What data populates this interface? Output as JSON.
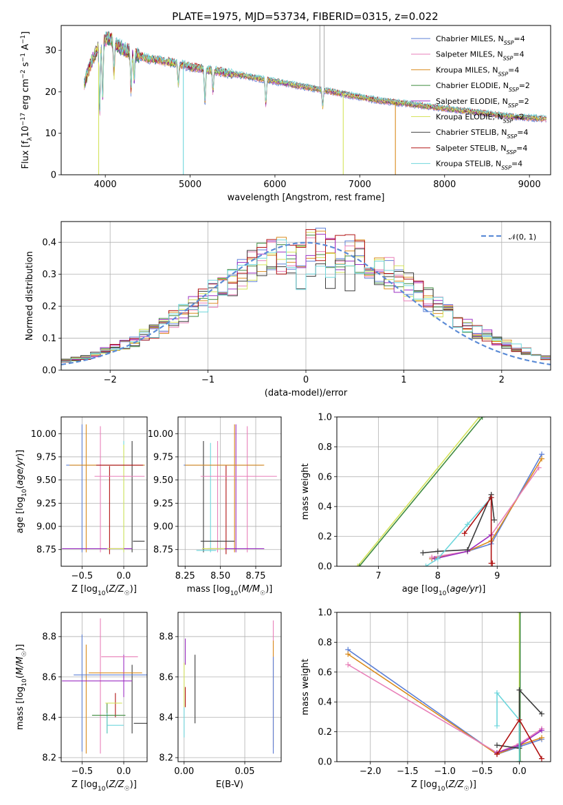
{
  "figure": {
    "title": "PLATE=1975, MJD=53734, FIBERID=0315, z=0.022"
  },
  "models": [
    {
      "name": "Chabrier MILES",
      "nssp": "4",
      "color": "#5b7fd6"
    },
    {
      "name": "Salpeter MILES",
      "nssp": "4",
      "color": "#e87fb8"
    },
    {
      "name": "Kroupa MILES",
      "nssp": "4",
      "color": "#d98a1a"
    },
    {
      "name": "Chabrier ELODIE",
      "nssp": "2",
      "color": "#3e8b3e"
    },
    {
      "name": "Salpeter ELODIE",
      "nssp": "2",
      "color": "#9b2ec2"
    },
    {
      "name": "Kroupa ELODIE",
      "nssp": "2",
      "color": "#d4e35a"
    },
    {
      "name": "Chabrier STELIB",
      "nssp": "4",
      "color": "#3a3a3a"
    },
    {
      "name": "Salpeter STELIB",
      "nssp": "4",
      "color": "#b01010"
    },
    {
      "name": "Kroupa STELIB",
      "nssp": "4",
      "color": "#6dd6dc"
    }
  ],
  "chart_data": [
    {
      "id": "spectrum",
      "type": "line",
      "xlabel": "wavelength [Angstrom, rest frame]",
      "ylabel": "Flux [f_λ 10^-17 erg cm^-2 s^-1 A^-1]",
      "xlim": [
        3480,
        9250
      ],
      "ylim": [
        0,
        36
      ],
      "xticks": [
        4000,
        5000,
        6000,
        7000,
        8000,
        9000
      ],
      "yticks": [
        0,
        10,
        20,
        30
      ],
      "grid": false,
      "legend": "top-right",
      "continuum": {
        "x": [
          3750,
          3850,
          3950,
          4050,
          4150,
          4300,
          4500,
          4800,
          5000,
          5300,
          5600,
          6000,
          6400,
          6800,
          7200,
          7600,
          8000,
          8400,
          8800,
          9200
        ],
        "y": [
          22,
          28,
          32,
          33,
          31,
          29.5,
          28,
          27,
          26,
          25,
          24,
          22.5,
          21,
          19.5,
          18,
          17,
          16,
          15,
          14,
          13.5
        ]
      },
      "absorption_features": [
        {
          "x": 3934,
          "depth": 16
        },
        {
          "x": 3969,
          "depth": 14
        },
        {
          "x": 4102,
          "depth": 8
        },
        {
          "x": 4304,
          "depth": 9
        },
        {
          "x": 4340,
          "depth": 6
        },
        {
          "x": 4861,
          "depth": 5
        },
        {
          "x": 5175,
          "depth": 8
        },
        {
          "x": 5270,
          "depth": 5
        },
        {
          "x": 5893,
          "depth": 6
        },
        {
          "x": 6563,
          "depth": 4
        }
      ],
      "spikes": [
        {
          "x": 4920,
          "to": 0,
          "color": "#6dd6dc"
        },
        {
          "x": 3922,
          "to": 0,
          "color": "#d4e35a"
        },
        {
          "x": 6805,
          "to": 0,
          "color": "#d4e35a"
        },
        {
          "x": 7420,
          "to": 0,
          "color": "#d98a1a"
        },
        {
          "x": 6530,
          "to": 36,
          "color": "#b0b0b0"
        },
        {
          "x": 6580,
          "to": 36,
          "color": "#b0b0b0"
        }
      ]
    },
    {
      "id": "residuals",
      "type": "step",
      "xlabel": "(data-model)/error",
      "ylabel": "Normed distribution",
      "xlim": [
        -2.5,
        2.5
      ],
      "ylim": [
        0,
        0.465
      ],
      "xticks": [
        -2,
        -1,
        0,
        1,
        2
      ],
      "yticks": [
        0.0,
        0.1,
        0.2,
        0.3,
        0.4
      ],
      "grid": true,
      "legend": "top-right",
      "reference": {
        "name": "𝒩(0, 1)",
        "color": "#5b8bd6"
      },
      "bins": {
        "start": -2.5,
        "width": 0.1,
        "count": 50
      },
      "base_histogram": [
        0.03,
        0.035,
        0.04,
        0.05,
        0.06,
        0.07,
        0.08,
        0.09,
        0.11,
        0.12,
        0.14,
        0.16,
        0.18,
        0.2,
        0.22,
        0.24,
        0.26,
        0.28,
        0.3,
        0.32,
        0.34,
        0.35,
        0.36,
        0.37,
        0.375,
        0.38,
        0.38,
        0.375,
        0.37,
        0.36,
        0.35,
        0.34,
        0.32,
        0.3,
        0.28,
        0.26,
        0.24,
        0.22,
        0.2,
        0.18,
        0.16,
        0.14,
        0.12,
        0.11,
        0.09,
        0.08,
        0.07,
        0.06,
        0.05,
        0.04
      ]
    },
    {
      "id": "age_vs_Z",
      "type": "errorbar",
      "xlabel": "Z [log10(Z/Z☉)]",
      "ylabel": "age [log10(age/yr)]",
      "xlim": [
        -0.75,
        0.28
      ],
      "ylim": [
        8.57,
        10.18
      ],
      "xticks": [
        -0.5,
        0.0
      ],
      "yticks": [
        8.75,
        9.0,
        9.25,
        9.5,
        9.75,
        10.0
      ],
      "grid": true,
      "points": [
        {
          "x": -0.22,
          "y": 9.66,
          "xerr": 0.47,
          "yerr": 0.0,
          "color": "#5b7fd6"
        },
        {
          "x": -0.05,
          "y": 9.54,
          "xerr": 0.3,
          "yerr": 0.0,
          "color": "#e87fb8"
        },
        {
          "x": -0.2,
          "y": 9.66,
          "xerr": 0.45,
          "yerr": 0.0,
          "color": "#d98a1a"
        },
        {
          "x": -0.32,
          "y": 8.76,
          "xerr": 0.42,
          "yerr": 0.0,
          "color": "#9b2ec2"
        },
        {
          "x": -0.1,
          "y": 8.76,
          "xerr": 0.1,
          "yerr": 0.0,
          "color": "#d4e35a"
        },
        {
          "x": -0.05,
          "y": 9.66,
          "xerr": 0.28,
          "yerr": 0.0,
          "color": "#b01010"
        },
        {
          "x": 0.18,
          "y": 8.84,
          "xerr": 0.07,
          "yerr": 0.0,
          "color": "#3a3a3a"
        }
      ],
      "vlines": [
        {
          "x": -0.5,
          "y0": 8.72,
          "y1": 10.1,
          "color": "#5b7fd6"
        },
        {
          "x": -0.45,
          "y0": 8.72,
          "y1": 10.1,
          "color": "#d98a1a"
        },
        {
          "x": -0.28,
          "y0": 8.72,
          "y1": 10.08,
          "color": "#e87fb8"
        },
        {
          "x": -0.17,
          "y0": 8.7,
          "y1": 9.65,
          "color": "#b01010"
        },
        {
          "x": 0.0,
          "y0": 8.72,
          "y1": 9.92,
          "color": "#6dd6dc"
        },
        {
          "x": 0.0,
          "y0": 8.72,
          "y1": 9.88,
          "color": "#d4e35a"
        },
        {
          "x": 0.1,
          "y0": 8.72,
          "y1": 9.92,
          "color": "#3a3a3a"
        }
      ]
    },
    {
      "id": "age_vs_mass",
      "type": "errorbar",
      "xlabel": "mass [log10(M/M☉)]",
      "ylabel": "",
      "xlim": [
        8.2,
        8.93
      ],
      "ylim": [
        8.57,
        10.18
      ],
      "xticks": [
        8.25,
        8.5,
        8.75
      ],
      "yticks": [
        8.75,
        9.0,
        9.25,
        9.5,
        9.75,
        10.0
      ],
      "grid": true,
      "points": [
        {
          "x": 8.52,
          "y": 9.66,
          "xerr": 0.28,
          "yerr": 0.0,
          "color": "#5b7fd6"
        },
        {
          "x": 8.63,
          "y": 9.54,
          "xerr": 0.27,
          "yerr": 0.0,
          "color": "#e87fb8"
        },
        {
          "x": 8.53,
          "y": 9.66,
          "xerr": 0.28,
          "yerr": 0.0,
          "color": "#d98a1a"
        },
        {
          "x": 8.61,
          "y": 8.76,
          "xerr": 0.2,
          "yerr": 0.0,
          "color": "#9b2ec2"
        },
        {
          "x": 8.45,
          "y": 8.76,
          "xerr": 0.08,
          "yerr": 0.0,
          "color": "#d4e35a"
        },
        {
          "x": 8.48,
          "y": 8.84,
          "xerr": 0.12,
          "yerr": 0.0,
          "color": "#3a3a3a"
        },
        {
          "x": 8.4,
          "y": 8.74,
          "xerr": 0.07,
          "yerr": 0.0,
          "color": "#6dd6dc"
        }
      ],
      "vlines": [
        {
          "x": 8.38,
          "y0": 8.72,
          "y1": 9.92,
          "color": "#3a3a3a"
        },
        {
          "x": 8.43,
          "y0": 8.72,
          "y1": 9.9,
          "color": "#6dd6dc"
        },
        {
          "x": 8.48,
          "y0": 8.72,
          "y1": 9.92,
          "color": "#e87fb8"
        },
        {
          "x": 8.54,
          "y0": 8.7,
          "y1": 9.66,
          "color": "#b01010"
        },
        {
          "x": 8.6,
          "y0": 8.72,
          "y1": 10.1,
          "color": "#d98a1a"
        },
        {
          "x": 8.61,
          "y0": 8.72,
          "y1": 10.1,
          "color": "#9b2ec2"
        },
        {
          "x": 8.69,
          "y0": 8.72,
          "y1": 10.08,
          "color": "#e87fb8"
        }
      ]
    },
    {
      "id": "weight_vs_age",
      "type": "line",
      "xlabel": "age [log10(age/yr)]",
      "ylabel": "mass weight",
      "xlim": [
        6.3,
        9.9
      ],
      "ylim": [
        0.0,
        1.0
      ],
      "xticks": [
        7,
        8,
        9
      ],
      "yticks": [
        0.0,
        0.2,
        0.4,
        0.6,
        0.8,
        1.0
      ],
      "grid": true,
      "series": [
        {
          "color": "#d4e35a",
          "x": [
            6.65,
            8.7
          ],
          "y": [
            0.0,
            1.0
          ]
        },
        {
          "color": "#3e8b3e",
          "x": [
            6.68,
            8.75
          ],
          "y": [
            0.0,
            1.0
          ]
        },
        {
          "color": "#5b7fd6",
          "x": [
            7.9,
            8.5,
            8.9,
            9.75
          ],
          "y": [
            0.05,
            0.1,
            0.15,
            0.75
          ]
        },
        {
          "color": "#d98a1a",
          "x": [
            7.9,
            8.5,
            8.9,
            9.75
          ],
          "y": [
            0.05,
            0.1,
            0.17,
            0.72
          ]
        },
        {
          "color": "#e87fb8",
          "x": [
            7.9,
            8.5,
            8.9,
            9.7
          ],
          "y": [
            0.06,
            0.1,
            0.21,
            0.66
          ]
        },
        {
          "color": "#9b2ec2",
          "x": [
            7.95,
            8.5,
            8.9
          ],
          "y": [
            0.05,
            0.1,
            0.21
          ]
        },
        {
          "color": "#3a3a3a",
          "x": [
            7.75,
            8.0,
            8.5,
            8.9,
            8.95
          ],
          "y": [
            0.09,
            0.1,
            0.11,
            0.48,
            0.31
          ]
        },
        {
          "color": "#6dd6dc",
          "x": [
            7.8,
            8.0,
            8.5,
            8.9
          ],
          "y": [
            0.0,
            0.05,
            0.28,
            0.46
          ]
        },
        {
          "color": "#b01010",
          "x": [
            8.45,
            8.9,
            8.9,
            8.92
          ],
          "y": [
            0.22,
            0.46,
            0.02,
            0.02
          ]
        }
      ]
    },
    {
      "id": "mass_vs_Z",
      "type": "errorbar",
      "xlabel": "Z [log10(Z/Z☉)]",
      "ylabel": "mass [log10(M/M☉)]",
      "xlim": [
        -0.75,
        0.28
      ],
      "ylim": [
        8.18,
        8.92
      ],
      "xticks": [
        -0.5,
        0.0
      ],
      "yticks": [
        8.2,
        8.4,
        8.6,
        8.8
      ],
      "grid": true,
      "points": [
        {
          "x": -0.1,
          "y": 8.61,
          "xerr": 0.5,
          "yerr": 0.0,
          "color": "#5b7fd6"
        },
        {
          "x": -0.05,
          "y": 8.7,
          "xerr": 0.22,
          "yerr": 0.0,
          "color": "#e87fb8"
        },
        {
          "x": -0.1,
          "y": 8.62,
          "xerr": 0.32,
          "yerr": 0.0,
          "color": "#d98a1a"
        },
        {
          "x": -0.32,
          "y": 8.58,
          "xerr": 0.42,
          "yerr": 0.0,
          "color": "#9b2ec2"
        },
        {
          "x": -0.12,
          "y": 8.47,
          "xerr": 0.1,
          "yerr": 0.0,
          "color": "#d4e35a"
        },
        {
          "x": -0.18,
          "y": 8.41,
          "xerr": 0.2,
          "yerr": 0.0,
          "color": "#3e8b3e"
        },
        {
          "x": -0.1,
          "y": 8.36,
          "xerr": 0.1,
          "yerr": 0.0,
          "color": "#6dd6dc"
        },
        {
          "x": 0.2,
          "y": 8.37,
          "xerr": 0.08,
          "yerr": 0.0,
          "color": "#3a3a3a"
        }
      ],
      "vlines": [
        {
          "x": -0.5,
          "y0": 8.23,
          "y1": 8.81,
          "color": "#5b7fd6"
        },
        {
          "x": -0.45,
          "y0": 8.22,
          "y1": 8.76,
          "color": "#d98a1a"
        },
        {
          "x": -0.28,
          "y0": 8.22,
          "y1": 8.89,
          "color": "#e87fb8"
        },
        {
          "x": -0.1,
          "y0": 8.4,
          "y1": 8.52,
          "color": "#b01010"
        },
        {
          "x": -0.2,
          "y0": 8.32,
          "y1": 8.47,
          "color": "#3e8b3e"
        },
        {
          "x": -0.2,
          "y0": 8.32,
          "y1": 8.42,
          "color": "#6dd6dc"
        },
        {
          "x": 0.0,
          "y0": 8.5,
          "y1": 8.71,
          "color": "#9b2ec2"
        },
        {
          "x": 0.1,
          "y0": 8.32,
          "y1": 8.66,
          "color": "#3a3a3a"
        }
      ]
    },
    {
      "id": "mass_vs_EBV",
      "type": "errorbar",
      "xlabel": "E(B-V)",
      "ylabel": "",
      "xlim": [
        -0.005,
        0.08
      ],
      "ylim": [
        8.18,
        8.92
      ],
      "xticks": [
        0.0,
        0.05
      ],
      "yticks": [
        8.2,
        8.4,
        8.6,
        8.8
      ],
      "grid": true,
      "points": [],
      "vlines": [
        {
          "x": 0.0,
          "y0": 8.3,
          "y1": 8.45,
          "color": "#6dd6dc"
        },
        {
          "x": 0.0,
          "y0": 8.45,
          "y1": 8.67,
          "color": "#d4e35a"
        },
        {
          "x": 0.001,
          "y0": 8.66,
          "y1": 8.79,
          "color": "#9b2ec2"
        },
        {
          "x": 0.001,
          "y0": 8.45,
          "y1": 8.55,
          "color": "#b01010"
        },
        {
          "x": 0.009,
          "y0": 8.37,
          "y1": 8.71,
          "color": "#3a3a3a"
        },
        {
          "x": 0.0735,
          "y0": 8.22,
          "y1": 8.88,
          "color": "#e87fb8"
        },
        {
          "x": 0.0735,
          "y0": 8.25,
          "y1": 8.78,
          "color": "#d98a1a"
        },
        {
          "x": 0.0735,
          "y0": 8.22,
          "y1": 8.7,
          "color": "#5b7fd6"
        }
      ]
    },
    {
      "id": "weight_vs_Z",
      "type": "line",
      "xlabel": "Z [log10(Z/Z☉)]",
      "ylabel": "mass weight",
      "xlim": [
        -2.45,
        0.42
      ],
      "ylim": [
        0.0,
        1.0
      ],
      "xticks": [
        -2.0,
        -1.5,
        -1.0,
        -0.5,
        0.0
      ],
      "yticks": [
        0.0,
        0.2,
        0.4,
        0.6,
        0.8,
        1.0
      ],
      "grid": true,
      "series": [
        {
          "color": "#5b7fd6",
          "x": [
            -2.3,
            -0.3,
            0.0,
            0.3
          ],
          "y": [
            0.75,
            0.05,
            0.1,
            0.15
          ]
        },
        {
          "color": "#d98a1a",
          "x": [
            -2.3,
            -0.3,
            0.0,
            0.3
          ],
          "y": [
            0.72,
            0.05,
            0.11,
            0.16
          ]
        },
        {
          "color": "#e87fb8",
          "x": [
            -2.3,
            -0.3,
            0.0,
            0.3
          ],
          "y": [
            0.65,
            0.06,
            0.12,
            0.22
          ]
        },
        {
          "color": "#9b2ec2",
          "x": [
            -0.3,
            0.0,
            0.3
          ],
          "y": [
            0.06,
            0.11,
            0.21
          ]
        },
        {
          "color": "#d4e35a",
          "x": [
            0.0,
            0.0
          ],
          "y": [
            0.0,
            1.0
          ]
        },
        {
          "color": "#3e8b3e",
          "x": [
            0.01,
            0.01
          ],
          "y": [
            0.0,
            1.0
          ]
        },
        {
          "color": "#3a3a3a",
          "x": [
            -0.3,
            0.0,
            0.0,
            0.3
          ],
          "y": [
            0.11,
            0.09,
            0.48,
            0.32
          ]
        },
        {
          "color": "#6dd6dc",
          "x": [
            -0.3,
            -0.3,
            0.0,
            0.0
          ],
          "y": [
            0.24,
            0.46,
            0.28,
            0.0
          ]
        },
        {
          "color": "#b01010",
          "x": [
            -0.3,
            0.0,
            0.3
          ],
          "y": [
            0.05,
            0.28,
            0.02
          ]
        }
      ]
    }
  ]
}
